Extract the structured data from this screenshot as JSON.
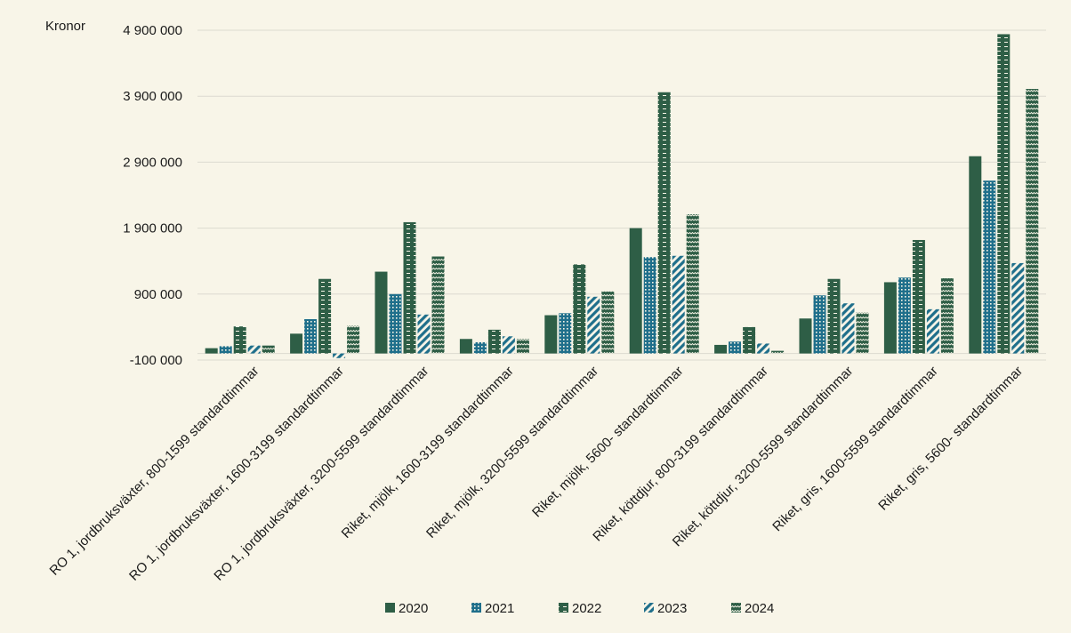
{
  "chart_data": {
    "type": "bar",
    "ylabel": "Kronor",
    "ylim": [
      -100000,
      4900000
    ],
    "yticks": [
      -100000,
      900000,
      1900000,
      2900000,
      3900000,
      4900000
    ],
    "ytick_labels": [
      "-100 000",
      "900 000",
      "1 900 000",
      "2 900 000",
      "3 900 000",
      "4 900 000"
    ],
    "categories": [
      "RO 1, jordbruksväxter, 800-1599 standardtimmar",
      "RO 1, jordbruksväxter, 1600-3199 standardtimmar",
      "RO 1, jordbruksväxter, 3200-5599 standardtimmar",
      "Riket, mjölk, 1600-3199 standardtimmar",
      "Riket, mjölk, 3200-5599 standardtimmar",
      "Riket, mjölk, 5600- standardtimmar",
      "Riket, köttdjur, 800-3199 standardtimmar",
      "Riket, köttdjur, 3200-5599 standardtimmar",
      "Riket, gris, 1600-5599 standardtimmar",
      "Riket, gris, 5600- standardtimmar"
    ],
    "series": [
      {
        "name": "2020",
        "pattern": "solid",
        "values": [
          80000,
          300000,
          1240000,
          220000,
          580000,
          1900000,
          130000,
          530000,
          1080000,
          2990000
        ]
      },
      {
        "name": "2021",
        "pattern": "dots",
        "values": [
          110000,
          520000,
          900000,
          170000,
          610000,
          1460000,
          180000,
          880000,
          1150000,
          2620000
        ]
      },
      {
        "name": "2022",
        "pattern": "dashes",
        "values": [
          410000,
          1130000,
          1990000,
          360000,
          1350000,
          3960000,
          400000,
          1130000,
          1720000,
          4840000
        ]
      },
      {
        "name": "2023",
        "pattern": "diagonal",
        "values": [
          120000,
          -70000,
          590000,
          260000,
          860000,
          1480000,
          150000,
          760000,
          670000,
          1370000
        ]
      },
      {
        "name": "2024",
        "pattern": "zigzag",
        "values": [
          120000,
          420000,
          1470000,
          220000,
          940000,
          2110000,
          40000,
          620000,
          1140000,
          4010000
        ]
      }
    ],
    "colors": {
      "bar": "#2e5e46",
      "bar_blue": "#1f6f8b",
      "background": "#f8f5e8",
      "grid": "#dcdad0",
      "text": "#1a1a1a"
    }
  }
}
